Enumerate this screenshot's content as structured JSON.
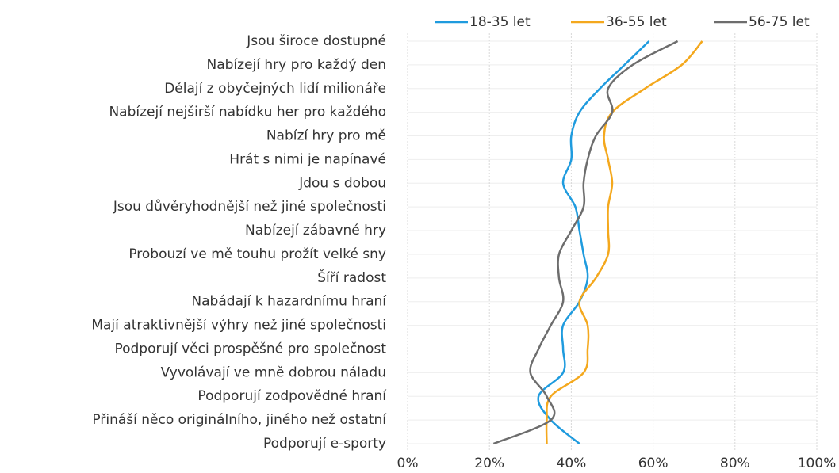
{
  "chart_data": {
    "type": "line",
    "orientation": "horizontal",
    "categories": [
      "Jsou široce dostupné",
      "Nabízejí hry pro každý den",
      "Dělají z obyčejných lidí milionáře",
      "Nabízejí nejširší nabídku her pro každého",
      "Nabízí hry pro mě",
      "Hrát s nimi je napínavé",
      "Jdou s dobou",
      "Jsou důvěryhodnější než jiné společnosti",
      "Nabízejí zábavné hry",
      "Probouzí ve mě touhu prožít velké sny",
      "Šíří radost",
      "Nabádají k hazardnímu hraní",
      "Mají atraktivnější výhry než jiné společnosti",
      "Podporují věci prospěšné pro společnost",
      "Vyvolávají ve mně dobrou náladu",
      "Podporují zodpovědné hraní",
      "Přináší něco originálního, jiného než ostatní",
      "Podporují e-sporty"
    ],
    "series": [
      {
        "name": "18-35 let",
        "color": "#1f9bde",
        "values": [
          59,
          53,
          47,
          42,
          40,
          40,
          38,
          41,
          42,
          43,
          44,
          42,
          38,
          38,
          38,
          32,
          35,
          42
        ]
      },
      {
        "name": "36-55 let",
        "color": "#f4a81d",
        "values": [
          72,
          67,
          58,
          50,
          48,
          49,
          50,
          49,
          49,
          49,
          46,
          42,
          44,
          44,
          43,
          35,
          34,
          34
        ]
      },
      {
        "name": "56-75 let",
        "color": "#6d6d6d",
        "values": [
          66,
          55,
          49,
          50,
          46,
          44,
          43,
          43,
          40,
          37,
          37,
          38,
          35,
          32,
          30,
          34,
          35,
          21
        ]
      }
    ],
    "xlim": [
      0,
      100
    ],
    "xticks": [
      {
        "value": 0,
        "label": "0%"
      },
      {
        "value": 20,
        "label": "20%"
      },
      {
        "value": 40,
        "label": "40%"
      },
      {
        "value": 60,
        "label": "60%"
      },
      {
        "value": 80,
        "label": "80%"
      },
      {
        "value": 100,
        "label": "100%"
      }
    ],
    "grid": true,
    "smooth": true,
    "legend": "top"
  }
}
